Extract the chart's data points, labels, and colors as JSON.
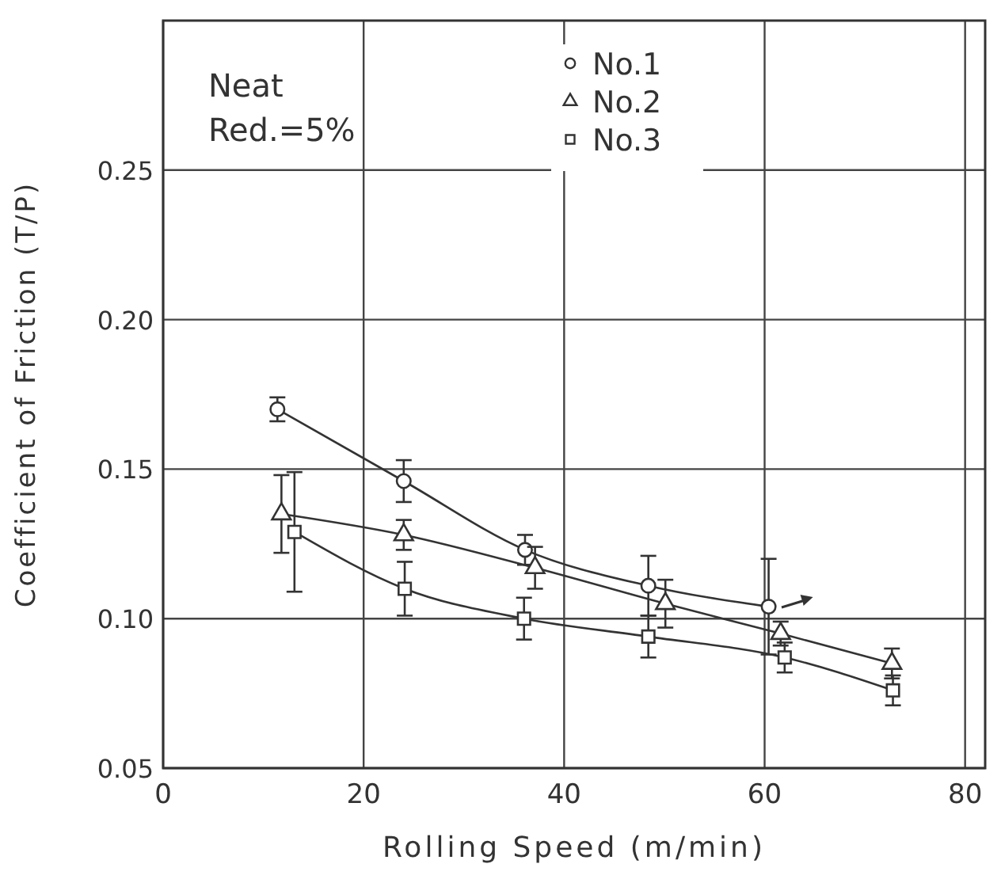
{
  "chart_data": {
    "type": "line",
    "xlabel": "Rolling  Speed  (m/min)",
    "ylabel": "Coefficient  of  Friction (T/P)",
    "xlim": [
      0,
      82
    ],
    "xticks": [
      0,
      20,
      40,
      60,
      80
    ],
    "ylim": [
      0.05,
      0.3
    ],
    "yticks": [
      0.05,
      {
        "value": 0.1,
        "label": "0.10"
      },
      0.15,
      {
        "value": 0.2,
        "label": "0.20"
      },
      0.25
    ],
    "grid": true,
    "legend": "top",
    "line_style": "solid",
    "annotations": [
      "Neat",
      "Red.=5%"
    ],
    "series": [
      {
        "name": "No.1",
        "color": "#333333",
        "marker": "circle",
        "x": [
          11.4,
          24,
          36.1,
          48.4,
          60.4
        ],
        "values": [
          0.17,
          0.146,
          0.123,
          0.111,
          0.104
        ],
        "errors": [
          0.004,
          0.007,
          0.005,
          0.01,
          0.016
        ]
      },
      {
        "name": "No.2",
        "color": "#333333",
        "marker": "triangle",
        "x": [
          11.8,
          24,
          37.1,
          50.1,
          61.6,
          72.7
        ],
        "values": [
          0.135,
          0.128,
          0.117,
          0.105,
          0.095,
          0.085
        ],
        "errors": [
          0.013,
          0.005,
          0.007,
          0.008,
          0.004,
          0.005
        ]
      },
      {
        "name": "No.3",
        "color": "#333333",
        "marker": "square",
        "x": [
          13.1,
          24.1,
          36,
          48.4,
          62,
          72.8
        ],
        "values": [
          0.129,
          0.11,
          0.1,
          0.094,
          0.087,
          0.076
        ],
        "errors": [
          0.02,
          0.009,
          0.007,
          0.007,
          0.005,
          0.005
        ]
      }
    ]
  }
}
